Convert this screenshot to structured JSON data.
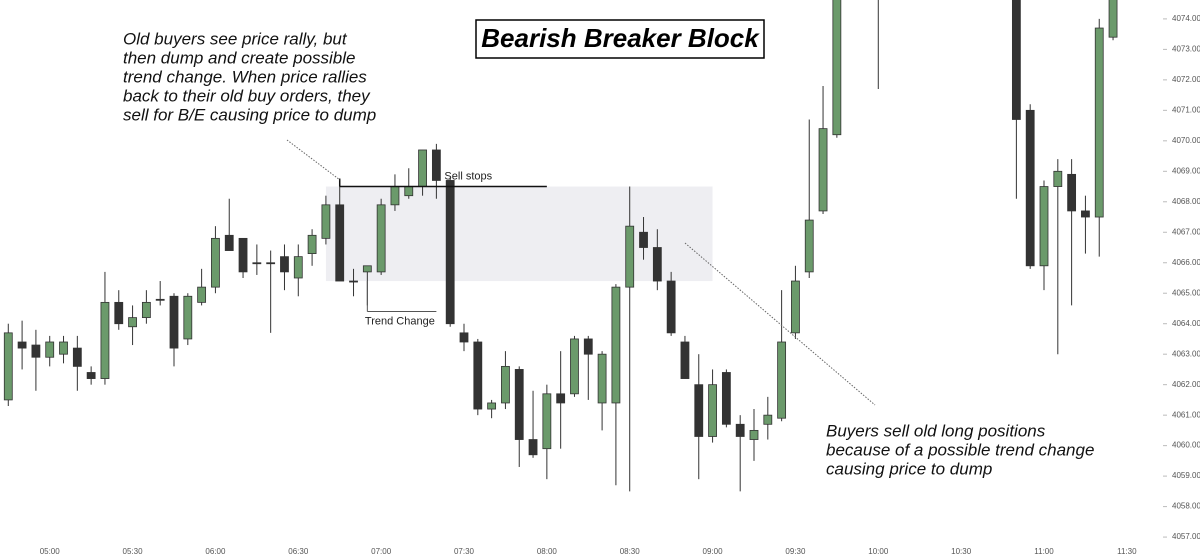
{
  "chart_data": {
    "type": "candlestick",
    "title": "Bearish Breaker Block",
    "x": [
      "04:45",
      "04:50",
      "04:55",
      "05:00",
      "05:05",
      "05:10",
      "05:15",
      "05:20",
      "05:25",
      "05:30",
      "05:35",
      "05:40",
      "05:45",
      "05:50",
      "05:55",
      "06:00",
      "06:05",
      "06:10",
      "06:15",
      "06:20",
      "06:25",
      "06:30",
      "06:35",
      "06:40",
      "06:45",
      "06:50",
      "06:55",
      "07:00",
      "07:05",
      "07:10",
      "07:15",
      "07:20",
      "07:25",
      "07:30",
      "07:35",
      "07:40",
      "07:45",
      "07:50",
      "07:55",
      "08:00",
      "08:05",
      "08:10",
      "08:15",
      "08:20",
      "08:25",
      "08:30",
      "08:35",
      "08:40",
      "08:45",
      "08:50",
      "08:55",
      "09:00",
      "09:05",
      "09:10",
      "09:15",
      "09:20",
      "09:25",
      "09:30",
      "09:35",
      "09:40",
      "09:45",
      "10:00",
      "10:50",
      "10:55",
      "11:00",
      "11:05",
      "11:10",
      "11:15",
      "11:20",
      "11:25"
    ],
    "open": [
      4061.5,
      4063.4,
      4063.3,
      4062.9,
      4063.0,
      4063.2,
      4062.4,
      4062.2,
      4064.7,
      4063.9,
      4064.2,
      4064.8,
      4064.9,
      4063.5,
      4064.7,
      4065.2,
      4066.9,
      4066.8,
      4066.0,
      4066.0,
      4066.2,
      4065.5,
      4066.3,
      4066.8,
      4067.9,
      4065.4,
      4065.7,
      4065.7,
      4067.9,
      4068.2,
      4068.5,
      4069.7,
      4068.7,
      4063.7,
      4063.4,
      4061.2,
      4061.4,
      4062.5,
      4060.2,
      4059.9,
      4061.7,
      4061.7,
      4063.5,
      4061.4,
      4061.4,
      4065.2,
      4067.0,
      4066.5,
      4065.4,
      4063.4,
      4062.0,
      4060.3,
      4062.4,
      4060.7,
      4060.2,
      4060.7,
      4060.9,
      4063.7,
      4065.7,
      4067.7,
      4070.2,
      4075.5,
      4075.0,
      4071.0,
      4065.9,
      4068.5,
      4068.9,
      4067.7,
      4067.5,
      4073.4
    ],
    "high": [
      4064.0,
      4064.1,
      4063.8,
      4063.6,
      4063.6,
      4063.6,
      4062.6,
      4065.7,
      4065.1,
      4064.6,
      4065.1,
      4065.4,
      4065.0,
      4065.0,
      4065.8,
      4067.2,
      4068.1,
      4066.8,
      4066.6,
      4066.4,
      4066.6,
      4066.6,
      4067.1,
      4068.2,
      4068.6,
      4065.8,
      4065.9,
      4068.1,
      4068.9,
      4069.1,
      4069.7,
      4069.9,
      4068.8,
      4064.0,
      4063.5,
      4061.5,
      4063.1,
      4062.6,
      4061.8,
      4062.0,
      4063.1,
      4063.6,
      4063.6,
      4063.1,
      4065.3,
      4068.5,
      4067.5,
      4067.1,
      4065.7,
      4063.6,
      4063.0,
      4062.5,
      4062.5,
      4061.0,
      4061.2,
      4061.6,
      4065.1,
      4065.9,
      4070.7,
      4071.8,
      4075.5,
      4076.5,
      4075.5,
      4071.2,
      4068.7,
      4069.4,
      4069.4,
      4068.2,
      4074.0,
      4075.5
    ],
    "low": [
      4061.3,
      4062.5,
      4061.8,
      4062.6,
      4062.7,
      4061.8,
      4062.0,
      4062.0,
      4063.8,
      4063.3,
      4064.0,
      4064.6,
      4062.6,
      4063.3,
      4064.6,
      4065.0,
      4066.4,
      4065.5,
      4065.6,
      4063.7,
      4065.1,
      4064.9,
      4065.9,
      4066.6,
      4065.4,
      4064.9,
      4064.6,
      4065.6,
      4067.7,
      4068.1,
      4068.2,
      4068.1,
      4063.9,
      4063.1,
      4061.0,
      4060.9,
      4061.2,
      4059.3,
      4059.6,
      4058.9,
      4059.9,
      4061.6,
      4061.5,
      4060.5,
      4058.7,
      4058.5,
      4066.1,
      4065.1,
      4063.6,
      4062.2,
      4058.9,
      4060.1,
      4060.6,
      4058.5,
      4059.5,
      4060.2,
      4060.8,
      4063.5,
      4065.5,
      4067.6,
      4070.1,
      4071.7,
      4068.1,
      4065.8,
      4065.1,
      4063.0,
      4064.6,
      4066.3,
      4066.2,
      4073.3
    ],
    "close": [
      4063.7,
      4063.2,
      4062.9,
      4063.4,
      4063.4,
      4062.6,
      4062.2,
      4064.7,
      4064.0,
      4064.2,
      4064.7,
      4064.8,
      4063.2,
      4064.9,
      4065.2,
      4066.8,
      4066.4,
      4065.7,
      4066.0,
      4066.0,
      4065.7,
      4066.2,
      4066.9,
      4067.9,
      4065.4,
      4065.4,
      4065.9,
      4067.9,
      4068.5,
      4068.5,
      4069.7,
      4068.7,
      4064.0,
      4063.4,
      4061.2,
      4061.4,
      4062.6,
      4060.2,
      4059.7,
      4061.7,
      4061.4,
      4063.5,
      4063.0,
      4063.0,
      4065.2,
      4067.2,
      4066.5,
      4065.4,
      4063.7,
      4062.2,
      4060.3,
      4062.0,
      4060.7,
      4060.3,
      4060.5,
      4061.0,
      4063.4,
      4065.4,
      4067.4,
      4070.4,
      4075.2,
      4076.0,
      4070.7,
      4065.9,
      4068.5,
      4069.0,
      4067.7,
      4067.5,
      4073.7,
      4075.0
    ],
    "up_color": "#6b9a6b",
    "down_color": "#333333",
    "xlim": [
      "04:42",
      "11:42"
    ],
    "xticks": [
      "05:00",
      "05:30",
      "06:00",
      "06:30",
      "07:00",
      "07:30",
      "08:00",
      "08:30",
      "09:00",
      "09:30",
      "10:00",
      "10:30",
      "11:00",
      "11:30"
    ],
    "ylim": [
      4056.74,
      4074.62
    ],
    "yticks": [
      {
        "value": 4057,
        "label": "4057.00"
      },
      {
        "value": 4058,
        "label": "4058.00"
      },
      {
        "value": 4059,
        "label": "4059.00"
      },
      {
        "value": 4060,
        "label": "4060.00"
      },
      {
        "value": 4061,
        "label": "4061.00"
      },
      {
        "value": 4062,
        "label": "4062.00"
      },
      {
        "value": 4063,
        "label": "4063.00"
      },
      {
        "value": 4064,
        "label": "4064.00"
      },
      {
        "value": 4065,
        "label": "4065.00"
      },
      {
        "value": 4066,
        "label": "4066.00"
      },
      {
        "value": 4067,
        "label": "4067.00"
      },
      {
        "value": 4068,
        "label": "4068.00"
      },
      {
        "value": 4069,
        "label": "4069.00"
      },
      {
        "value": 4070,
        "label": "4070.00"
      },
      {
        "value": 4071,
        "label": "4071.00"
      },
      {
        "value": 4072,
        "label": "4072.00"
      },
      {
        "value": 4073,
        "label": "4073.00"
      },
      {
        "value": 4074,
        "label": "4074.00"
      }
    ],
    "zone": {
      "x": [
        "06:40",
        "09:00"
      ],
      "y": [
        4065.4,
        4068.5
      ]
    },
    "levels": [
      {
        "label": "Sell stops",
        "x": [
          "06:45",
          "08:00"
        ],
        "y": 4068.5
      },
      {
        "label": "Trend Change",
        "x": [
          "06:55",
          "07:20"
        ],
        "y": 4064.4
      }
    ],
    "notes": [
      {
        "lines": [
          "Old buyers see price rally, but",
          "then dump and create possible",
          "trend change. When price rallies",
          "back to their old buy orders, they",
          "sell for B/E causing price to dump"
        ]
      },
      {
        "lines": [
          "Buyers sell old long positions",
          "because of a possible trend change",
          "causing price to dump"
        ]
      }
    ]
  }
}
